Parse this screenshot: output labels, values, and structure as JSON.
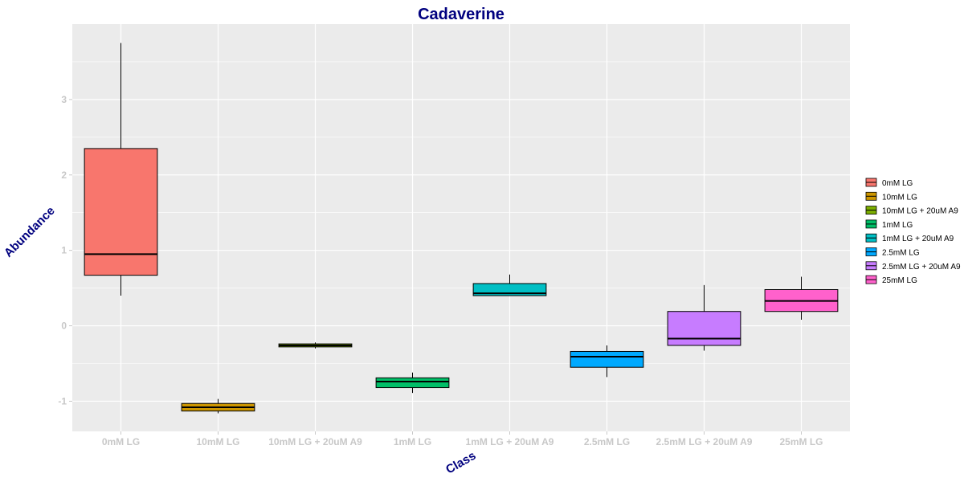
{
  "chart_data": {
    "type": "boxplot",
    "title": "Cadaverine",
    "xlabel": "Class",
    "ylabel": "Abundance",
    "ylim": [
      -1.4,
      4.0
    ],
    "yticks": [
      -1,
      0,
      1,
      2,
      3
    ],
    "ytick_labels": [
      "-1",
      "0",
      "1",
      "2",
      "3"
    ],
    "grid": true,
    "legend_position": "right",
    "categories": [
      "0mM LG",
      "10mM LG",
      "10mM LG + 20uM A9",
      "1mM LG",
      "1mM LG + 20uM A9",
      "2.5mM LG",
      "2.5mM LG + 20uM A9",
      "25mM LG"
    ],
    "series": [
      {
        "name": "0mM LG",
        "color": "#F8766D",
        "min": 0.4,
        "q1": 0.67,
        "median": 0.95,
        "q3": 2.35,
        "max": 3.75
      },
      {
        "name": "10mM LG",
        "color": "#CD9600",
        "min": -1.16,
        "q1": -1.13,
        "median": -1.08,
        "q3": -1.03,
        "max": -0.97
      },
      {
        "name": "10mM LG + 20uM A9",
        "color": "#7CAE00",
        "min": -0.3,
        "q1": -0.28,
        "median": -0.26,
        "q3": -0.24,
        "max": -0.22
      },
      {
        "name": "1mM LG",
        "color": "#00BE67",
        "min": -0.89,
        "q1": -0.82,
        "median": -0.74,
        "q3": -0.69,
        "max": -0.62
      },
      {
        "name": "1mM LG + 20uM A9",
        "color": "#00BFC4",
        "min": 0.4,
        "q1": 0.4,
        "median": 0.43,
        "q3": 0.56,
        "max": 0.68
      },
      {
        "name": "2.5mM LG",
        "color": "#00A9FF",
        "min": -0.68,
        "q1": -0.55,
        "median": -0.41,
        "q3": -0.34,
        "max": -0.26
      },
      {
        "name": "2.5mM LG + 20uM A9",
        "color": "#C77CFF",
        "min": -0.33,
        "q1": -0.26,
        "median": -0.17,
        "q3": 0.19,
        "max": 0.54
      },
      {
        "name": "25mM LG",
        "color": "#FF61CC",
        "min": 0.08,
        "q1": 0.19,
        "median": 0.33,
        "q3": 0.48,
        "max": 0.65
      }
    ]
  },
  "colors": {
    "panel_background": "#ebebeb",
    "grid_line": "#ffffff",
    "title": "#00007f",
    "tick_label": "#c8c8c8"
  }
}
